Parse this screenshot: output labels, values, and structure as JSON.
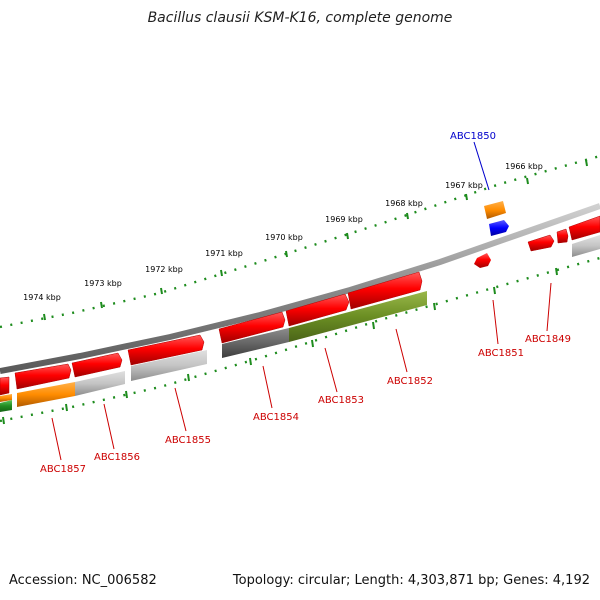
{
  "title": "Bacillus clausii KSM-K16, complete genome",
  "footer": {
    "accession": "Accession: NC_006582",
    "summary": "Topology: circular; Length: 4,303,871 bp; Genes: 4,192"
  },
  "scale_ticks": [
    "1974 kbp",
    "1973 kbp",
    "1972 kbp",
    "1971 kbp",
    "1970 kbp",
    "1969 kbp",
    "1968 kbp",
    "1967 kbp",
    "1966 kbp"
  ],
  "gene_labels": [
    "ABC1850",
    "ABC1849",
    "ABC1851",
    "ABC1852",
    "ABC1853",
    "ABC1854",
    "ABC1855",
    "ABC1856",
    "ABC1857"
  ],
  "colors": {
    "red": "#ff0000",
    "orange": "#ff8c00",
    "blue": "#0000ff",
    "olive": "#6b8e23",
    "gray": "#bbbbbb",
    "darkgray": "#666666",
    "green": "#228b22",
    "label_red": "#cc0000",
    "label_blue": "#0000cc"
  }
}
